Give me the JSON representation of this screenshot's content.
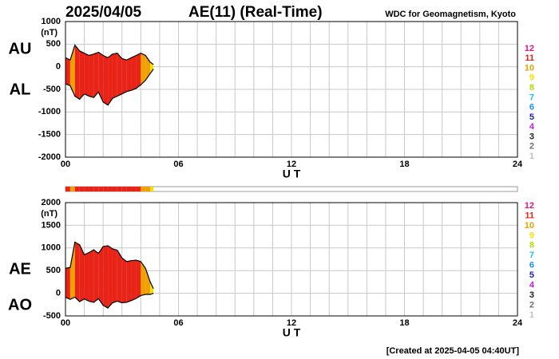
{
  "header": {
    "date": "2025/04/05",
    "title": "AE(11) (Real-Time)",
    "source": "WDC for Geomagnetism, Kyoto"
  },
  "footer": "[Created at 2025-04-05 04:40UT]",
  "legend": [
    {
      "label": "12",
      "color": "#e0177f"
    },
    {
      "label": "11",
      "color": "#e82418"
    },
    {
      "label": "10",
      "color": "#f0a000"
    },
    {
      "label": "9",
      "color": "#f2e200"
    },
    {
      "label": "8",
      "color": "#b4dc00"
    },
    {
      "label": "7",
      "color": "#20c0e0"
    },
    {
      "label": "6",
      "color": "#1e90ff"
    },
    {
      "label": "5",
      "color": "#2020c0"
    },
    {
      "label": "4",
      "color": "#c020e0"
    },
    {
      "label": "3",
      "color": "#202020"
    },
    {
      "label": "2",
      "color": "#707070"
    },
    {
      "label": "1",
      "color": "#c0c0c0"
    }
  ],
  "chart_data": [
    {
      "type": "area-range",
      "ylabel": "(nT)",
      "xlabel": "U T",
      "x": [
        0,
        0.25,
        0.5,
        0.75,
        1,
        1.25,
        1.5,
        1.75,
        2,
        2.25,
        2.5,
        2.75,
        3,
        3.25,
        3.5,
        3.75,
        4,
        4.25,
        4.5,
        4.67
      ],
      "stations": [
        11,
        10,
        11,
        11,
        11,
        11,
        11,
        11,
        11,
        11,
        11,
        11,
        11,
        11,
        11,
        11,
        10,
        10,
        9,
        9
      ],
      "series": [
        {
          "name": "AU",
          "values": [
            200,
            150,
            480,
            350,
            300,
            250,
            280,
            320,
            250,
            200,
            280,
            300,
            180,
            150,
            200,
            250,
            300,
            250,
            100,
            50
          ]
        },
        {
          "name": "AL",
          "values": [
            -380,
            -420,
            -650,
            -720,
            -600,
            -650,
            -680,
            -560,
            -780,
            -850,
            -700,
            -650,
            -600,
            -550,
            -520,
            -480,
            -400,
            -300,
            -150,
            -50
          ]
        }
      ],
      "xlim": [
        0,
        24
      ],
      "xticks": [
        {
          "value": 0,
          "label": "00"
        },
        {
          "value": 6,
          "label": "06"
        },
        12,
        18,
        24
      ],
      "xminor": [
        0,
        1,
        2,
        3,
        4,
        5,
        6,
        7,
        8,
        9,
        10,
        11,
        12,
        13,
        14,
        15,
        16,
        17,
        18,
        19,
        20,
        21,
        22,
        23,
        24
      ],
      "ylim": [
        -2000,
        1000
      ],
      "yticks": [
        1000,
        500,
        0,
        -500,
        -1000,
        -1500,
        -2000
      ],
      "grid": true
    },
    {
      "type": "area-range",
      "ylabel": "(nT)",
      "xlabel": "U T",
      "x": [
        0,
        0.25,
        0.5,
        0.75,
        1,
        1.25,
        1.5,
        1.75,
        2,
        2.25,
        2.5,
        2.75,
        3,
        3.25,
        3.5,
        3.75,
        4,
        4.25,
        4.5,
        4.67
      ],
      "stations": [
        11,
        10,
        11,
        11,
        11,
        11,
        11,
        11,
        11,
        11,
        11,
        11,
        11,
        11,
        11,
        11,
        10,
        10,
        9,
        9
      ],
      "series": [
        {
          "name": "AE",
          "values": [
            550,
            570,
            1130,
            1070,
            850,
            900,
            960,
            880,
            1030,
            1050,
            980,
            950,
            780,
            700,
            720,
            730,
            700,
            550,
            250,
            100
          ]
        },
        {
          "name": "AO",
          "values": [
            -90,
            -135,
            -85,
            -185,
            -125,
            -175,
            -200,
            -120,
            -265,
            -325,
            -210,
            -175,
            -210,
            -200,
            -160,
            -115,
            -50,
            -25,
            -25,
            0
          ]
        }
      ],
      "xlim": [
        0,
        24
      ],
      "xticks": [
        {
          "value": 0,
          "label": "00"
        },
        {
          "value": 6,
          "label": "06"
        },
        12,
        18,
        24
      ],
      "xminor": [
        0,
        1,
        2,
        3,
        4,
        5,
        6,
        7,
        8,
        9,
        10,
        11,
        12,
        13,
        14,
        15,
        16,
        17,
        18,
        19,
        20,
        21,
        22,
        23,
        24
      ],
      "ylim": [
        -500,
        2000
      ],
      "yticks": [
        2000,
        1500,
        1000,
        500,
        0,
        -500
      ],
      "grid": true
    }
  ]
}
